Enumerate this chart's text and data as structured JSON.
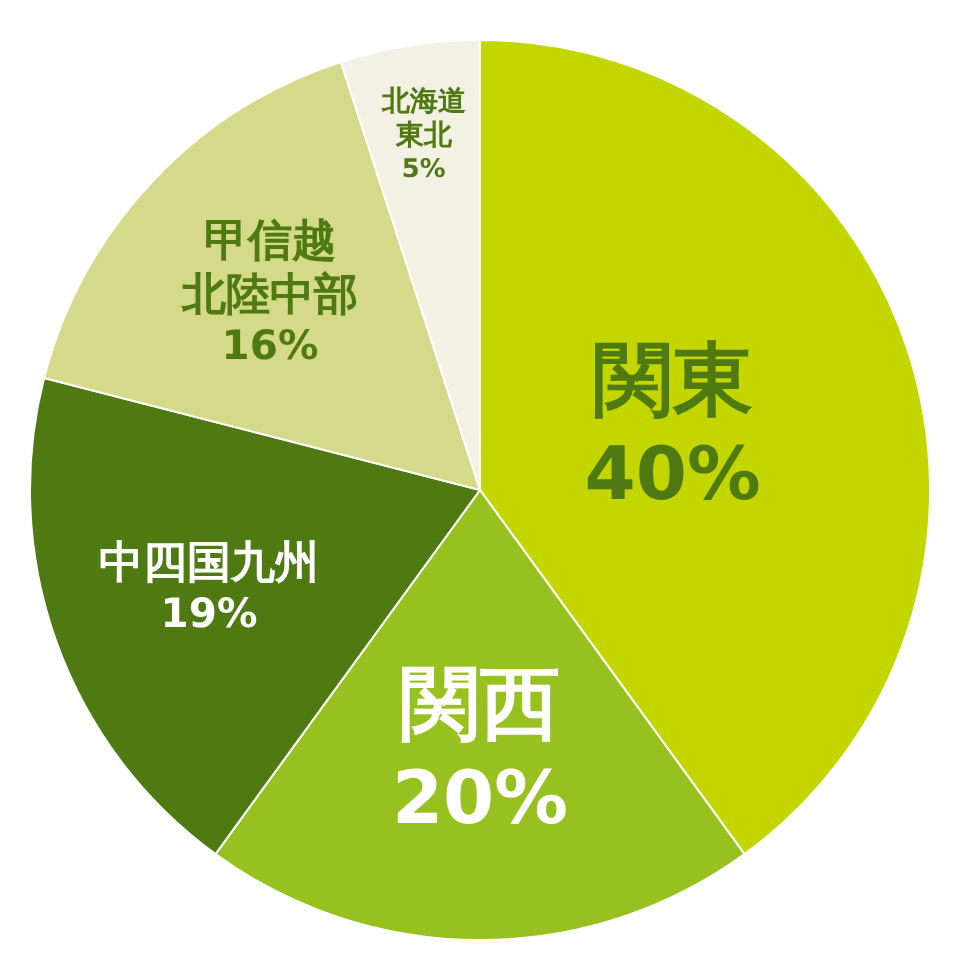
{
  "chart_data": {
    "type": "pie",
    "categories": [
      "関東",
      "関西",
      "中四国九州",
      "甲信越北陸中部",
      "北海道東北"
    ],
    "values": [
      40,
      20,
      19,
      16,
      5
    ],
    "colors": [
      "#c3d600",
      "#96c11f",
      "#4f7a12",
      "#d5d98a",
      "#f3f1e4"
    ],
    "value_labels": [
      "40%",
      "20%",
      "19%",
      "16%",
      "5%"
    ]
  }
}
